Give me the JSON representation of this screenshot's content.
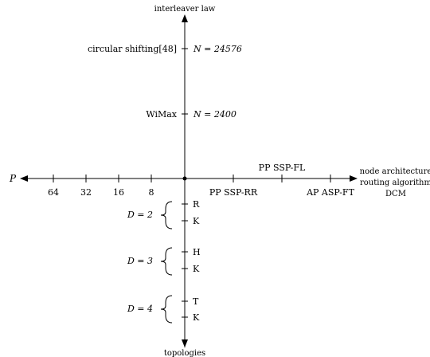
{
  "axes": {
    "top_label": "interleaver law",
    "bottom_label": "topologies",
    "left_label": "P",
    "right_labels": [
      "node architecture",
      "routing algorithm",
      "DCM"
    ]
  },
  "interleaver_items": [
    {
      "name": "circular shifting",
      "ref": "[48]",
      "value": "N = 24576"
    },
    {
      "name": "WiMax",
      "value": "N = 2400"
    }
  ],
  "p_ticks": [
    "64",
    "32",
    "16",
    "8"
  ],
  "node_items": {
    "upper": [
      "PP SSP-FL"
    ],
    "lower": [
      "PP SSP-RR",
      "AP ASP-FT"
    ]
  },
  "topology_groups": [
    {
      "label": "D = 2",
      "items": [
        "R",
        "K"
      ]
    },
    {
      "label": "D = 3",
      "items": [
        "H",
        "K"
      ]
    },
    {
      "label": "D = 4",
      "items": [
        "T",
        "K"
      ]
    }
  ]
}
